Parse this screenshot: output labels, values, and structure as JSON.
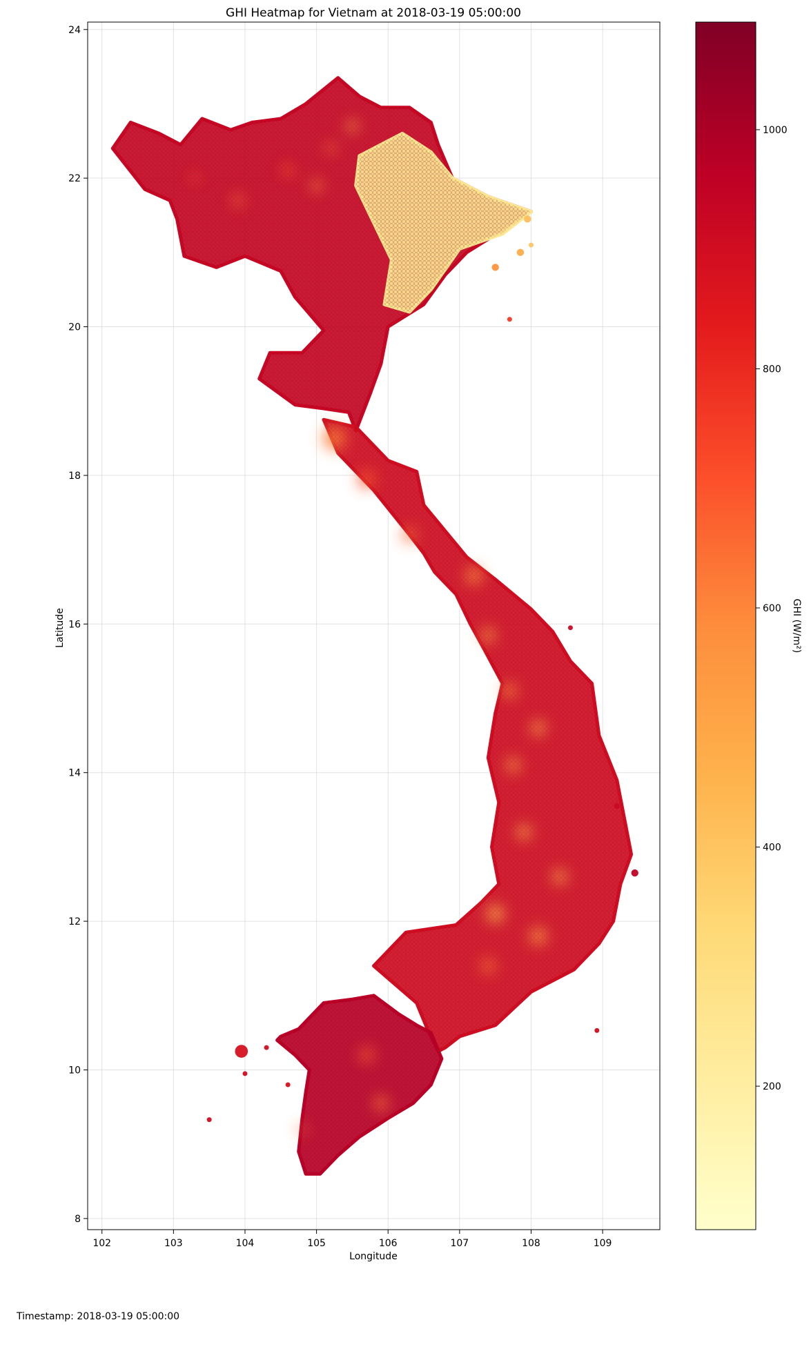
{
  "chart_data": {
    "type": "heatmap",
    "title": "GHI Heatmap for Vietnam at 2018-03-19 05:00:00",
    "xlabel": "Longitude",
    "ylabel": "Latitude",
    "xlim": [
      101.8,
      109.8
    ],
    "ylim": [
      7.85,
      24.1
    ],
    "x_ticks": [
      "102",
      "103",
      "104",
      "105",
      "106",
      "107",
      "108",
      "109"
    ],
    "y_ticks": [
      "8",
      "10",
      "12",
      "14",
      "16",
      "18",
      "20",
      "22",
      "24"
    ],
    "grid": true,
    "colorbar": {
      "label": "GHI (W/m²)",
      "range": [
        80,
        1090
      ],
      "ticks": [
        "200",
        "400",
        "600",
        "800",
        "1000"
      ],
      "colors": [
        "#ffffcc",
        "#ffeda0",
        "#fed976",
        "#feb24c",
        "#fd8d3c",
        "#fc4e2a",
        "#e31a1c",
        "#bd0026",
        "#800026"
      ]
    },
    "regions": [
      {
        "name": "north",
        "ghi": 930,
        "lonlat": [
          [
            102.15,
            22.4
          ],
          [
            102.4,
            22.75
          ],
          [
            102.8,
            22.6
          ],
          [
            103.1,
            22.45
          ],
          [
            103.4,
            22.8
          ],
          [
            103.8,
            22.65
          ],
          [
            104.1,
            22.75
          ],
          [
            104.5,
            22.8
          ],
          [
            104.85,
            23.0
          ],
          [
            105.3,
            23.35
          ],
          [
            105.6,
            23.1
          ],
          [
            105.9,
            22.95
          ],
          [
            106.3,
            22.95
          ],
          [
            106.6,
            22.75
          ],
          [
            106.7,
            22.45
          ],
          [
            106.9,
            22.0
          ],
          [
            107.4,
            21.75
          ],
          [
            108.0,
            21.55
          ],
          [
            107.6,
            21.3
          ],
          [
            107.1,
            21.0
          ],
          [
            106.8,
            20.7
          ],
          [
            106.5,
            20.3
          ],
          [
            106.0,
            20.0
          ],
          [
            105.9,
            19.5
          ],
          [
            105.75,
            19.1
          ],
          [
            105.55,
            18.6
          ],
          [
            105.45,
            18.85
          ],
          [
            105.1,
            18.9
          ],
          [
            104.7,
            18.95
          ],
          [
            104.2,
            19.3
          ],
          [
            104.35,
            19.65
          ],
          [
            104.8,
            19.65
          ],
          [
            105.1,
            19.95
          ],
          [
            104.7,
            20.4
          ],
          [
            104.5,
            20.75
          ],
          [
            104.0,
            20.95
          ],
          [
            103.6,
            20.8
          ],
          [
            103.15,
            20.95
          ],
          [
            103.05,
            21.45
          ],
          [
            102.95,
            21.7
          ],
          [
            102.6,
            21.85
          ],
          [
            102.15,
            22.4
          ]
        ]
      },
      {
        "name": "northeast-bright",
        "ghi": 250,
        "lonlat": [
          [
            105.6,
            22.3
          ],
          [
            106.2,
            22.6
          ],
          [
            106.6,
            22.35
          ],
          [
            106.9,
            22.0
          ],
          [
            107.4,
            21.75
          ],
          [
            108.0,
            21.55
          ],
          [
            107.6,
            21.25
          ],
          [
            107.0,
            21.05
          ],
          [
            106.6,
            20.5
          ],
          [
            106.3,
            20.2
          ],
          [
            105.95,
            20.3
          ],
          [
            106.05,
            20.9
          ],
          [
            105.8,
            21.4
          ],
          [
            105.55,
            21.9
          ],
          [
            105.6,
            22.3
          ]
        ]
      },
      {
        "name": "central",
        "ghi": 900,
        "lonlat": [
          [
            105.1,
            18.75
          ],
          [
            105.55,
            18.65
          ],
          [
            106.0,
            18.2
          ],
          [
            106.4,
            18.05
          ],
          [
            106.5,
            17.6
          ],
          [
            106.8,
            17.25
          ],
          [
            107.1,
            16.9
          ],
          [
            107.5,
            16.6
          ],
          [
            108.0,
            16.2
          ],
          [
            108.3,
            15.9
          ],
          [
            108.55,
            15.5
          ],
          [
            108.85,
            15.2
          ],
          [
            108.95,
            14.5
          ],
          [
            109.2,
            13.9
          ],
          [
            109.3,
            13.4
          ],
          [
            109.4,
            12.9
          ],
          [
            109.25,
            12.5
          ],
          [
            109.15,
            12.0
          ],
          [
            108.95,
            11.7
          ],
          [
            108.6,
            11.35
          ],
          [
            108.0,
            11.05
          ],
          [
            107.5,
            10.6
          ],
          [
            107.0,
            10.45
          ],
          [
            106.8,
            10.3
          ],
          [
            106.7,
            10.25
          ],
          [
            106.55,
            10.55
          ],
          [
            106.4,
            10.9
          ],
          [
            106.1,
            11.15
          ],
          [
            105.8,
            11.4
          ],
          [
            106.25,
            11.85
          ],
          [
            106.95,
            11.95
          ],
          [
            107.3,
            12.25
          ],
          [
            107.55,
            12.5
          ],
          [
            107.45,
            13.0
          ],
          [
            107.55,
            13.6
          ],
          [
            107.4,
            14.2
          ],
          [
            107.5,
            14.8
          ],
          [
            107.6,
            15.2
          ],
          [
            107.35,
            15.65
          ],
          [
            107.15,
            16.0
          ],
          [
            106.95,
            16.4
          ],
          [
            106.65,
            16.7
          ],
          [
            106.5,
            16.95
          ],
          [
            106.3,
            17.2
          ],
          [
            106.05,
            17.5
          ],
          [
            105.8,
            17.8
          ],
          [
            105.5,
            18.1
          ],
          [
            105.3,
            18.3
          ],
          [
            105.1,
            18.75
          ]
        ]
      },
      {
        "name": "south",
        "ghi": 970,
        "lonlat": [
          [
            104.5,
            10.45
          ],
          [
            104.75,
            10.55
          ],
          [
            105.1,
            10.9
          ],
          [
            105.5,
            10.95
          ],
          [
            105.8,
            11.0
          ],
          [
            106.15,
            10.75
          ],
          [
            106.4,
            10.6
          ],
          [
            106.6,
            10.5
          ],
          [
            106.75,
            10.15
          ],
          [
            106.6,
            9.8
          ],
          [
            106.35,
            9.55
          ],
          [
            106.0,
            9.35
          ],
          [
            105.6,
            9.1
          ],
          [
            105.3,
            8.85
          ],
          [
            105.05,
            8.6
          ],
          [
            104.85,
            8.6
          ],
          [
            104.75,
            8.9
          ],
          [
            104.8,
            9.35
          ],
          [
            104.85,
            9.7
          ],
          [
            104.9,
            10.0
          ],
          [
            104.7,
            10.2
          ],
          [
            104.45,
            10.4
          ],
          [
            104.5,
            10.45
          ]
        ]
      }
    ],
    "highlights": [
      {
        "ghi": 620,
        "lon": 105.25,
        "lat": 18.5,
        "r": 0.16
      },
      {
        "ghi": 700,
        "lon": 105.7,
        "lat": 17.95,
        "r": 0.12
      },
      {
        "ghi": 660,
        "lon": 106.3,
        "lat": 17.2,
        "r": 0.1
      },
      {
        "ghi": 600,
        "lon": 107.2,
        "lat": 16.65,
        "r": 0.12
      },
      {
        "ghi": 560,
        "lon": 107.4,
        "lat": 15.85,
        "r": 0.1
      },
      {
        "ghi": 600,
        "lon": 107.7,
        "lat": 15.1,
        "r": 0.1
      },
      {
        "ghi": 520,
        "lon": 108.1,
        "lat": 14.6,
        "r": 0.1
      },
      {
        "ghi": 560,
        "lon": 107.75,
        "lat": 14.1,
        "r": 0.1
      },
      {
        "ghi": 500,
        "lon": 107.9,
        "lat": 13.2,
        "r": 0.1
      },
      {
        "ghi": 520,
        "lon": 108.4,
        "lat": 12.6,
        "r": 0.1
      },
      {
        "ghi": 480,
        "lon": 107.5,
        "lat": 12.1,
        "r": 0.12
      },
      {
        "ghi": 560,
        "lon": 108.1,
        "lat": 11.8,
        "r": 0.12
      },
      {
        "ghi": 640,
        "lon": 107.4,
        "lat": 11.4,
        "r": 0.1
      },
      {
        "ghi": 680,
        "lon": 105.7,
        "lat": 10.2,
        "r": 0.1
      },
      {
        "ghi": 640,
        "lon": 105.9,
        "lat": 9.55,
        "r": 0.1
      },
      {
        "ghi": 660,
        "lon": 104.8,
        "lat": 9.2,
        "r": 0.06
      },
      {
        "ghi": 700,
        "lon": 104.6,
        "lat": 22.1,
        "r": 0.08
      },
      {
        "ghi": 600,
        "lon": 105.0,
        "lat": 21.9,
        "r": 0.08
      },
      {
        "ghi": 640,
        "lon": 105.2,
        "lat": 22.4,
        "r": 0.07
      },
      {
        "ghi": 660,
        "lon": 103.9,
        "lat": 21.7,
        "r": 0.08
      },
      {
        "ghi": 700,
        "lon": 103.3,
        "lat": 22.0,
        "r": 0.06
      },
      {
        "ghi": 540,
        "lon": 105.5,
        "lat": 22.7,
        "r": 0.08
      }
    ],
    "islands": [
      {
        "ghi": 880,
        "lon": 103.95,
        "lat": 10.25,
        "r": 0.09
      },
      {
        "ghi": 900,
        "lon": 104.0,
        "lat": 9.95,
        "r": 0.03
      },
      {
        "ghi": 900,
        "lon": 103.5,
        "lat": 9.33,
        "r": 0.03
      },
      {
        "ghi": 880,
        "lon": 104.6,
        "lat": 9.8,
        "r": 0.03
      },
      {
        "ghi": 760,
        "lon": 107.7,
        "lat": 20.1,
        "r": 0.03
      },
      {
        "ghi": 900,
        "lon": 108.92,
        "lat": 10.53,
        "r": 0.03
      },
      {
        "ghi": 920,
        "lon": 108.55,
        "lat": 15.95,
        "r": 0.03
      },
      {
        "ghi": 950,
        "lon": 109.45,
        "lat": 12.65,
        "r": 0.05
      },
      {
        "ghi": 560,
        "lon": 107.5,
        "lat": 20.8,
        "r": 0.05
      },
      {
        "ghi": 480,
        "lon": 107.85,
        "lat": 21.0,
        "r": 0.05
      },
      {
        "ghi": 420,
        "lon": 107.95,
        "lat": 21.45,
        "r": 0.05
      },
      {
        "ghi": 400,
        "lon": 108.0,
        "lat": 21.1,
        "r": 0.03
      },
      {
        "ghi": 900,
        "lon": 104.3,
        "lat": 10.3,
        "r": 0.03
      },
      {
        "ghi": 920,
        "lon": 109.2,
        "lat": 13.55,
        "r": 0.04
      }
    ]
  },
  "footer": {
    "timestamp": "Timestamp: 2018-03-19 05:00:00"
  }
}
